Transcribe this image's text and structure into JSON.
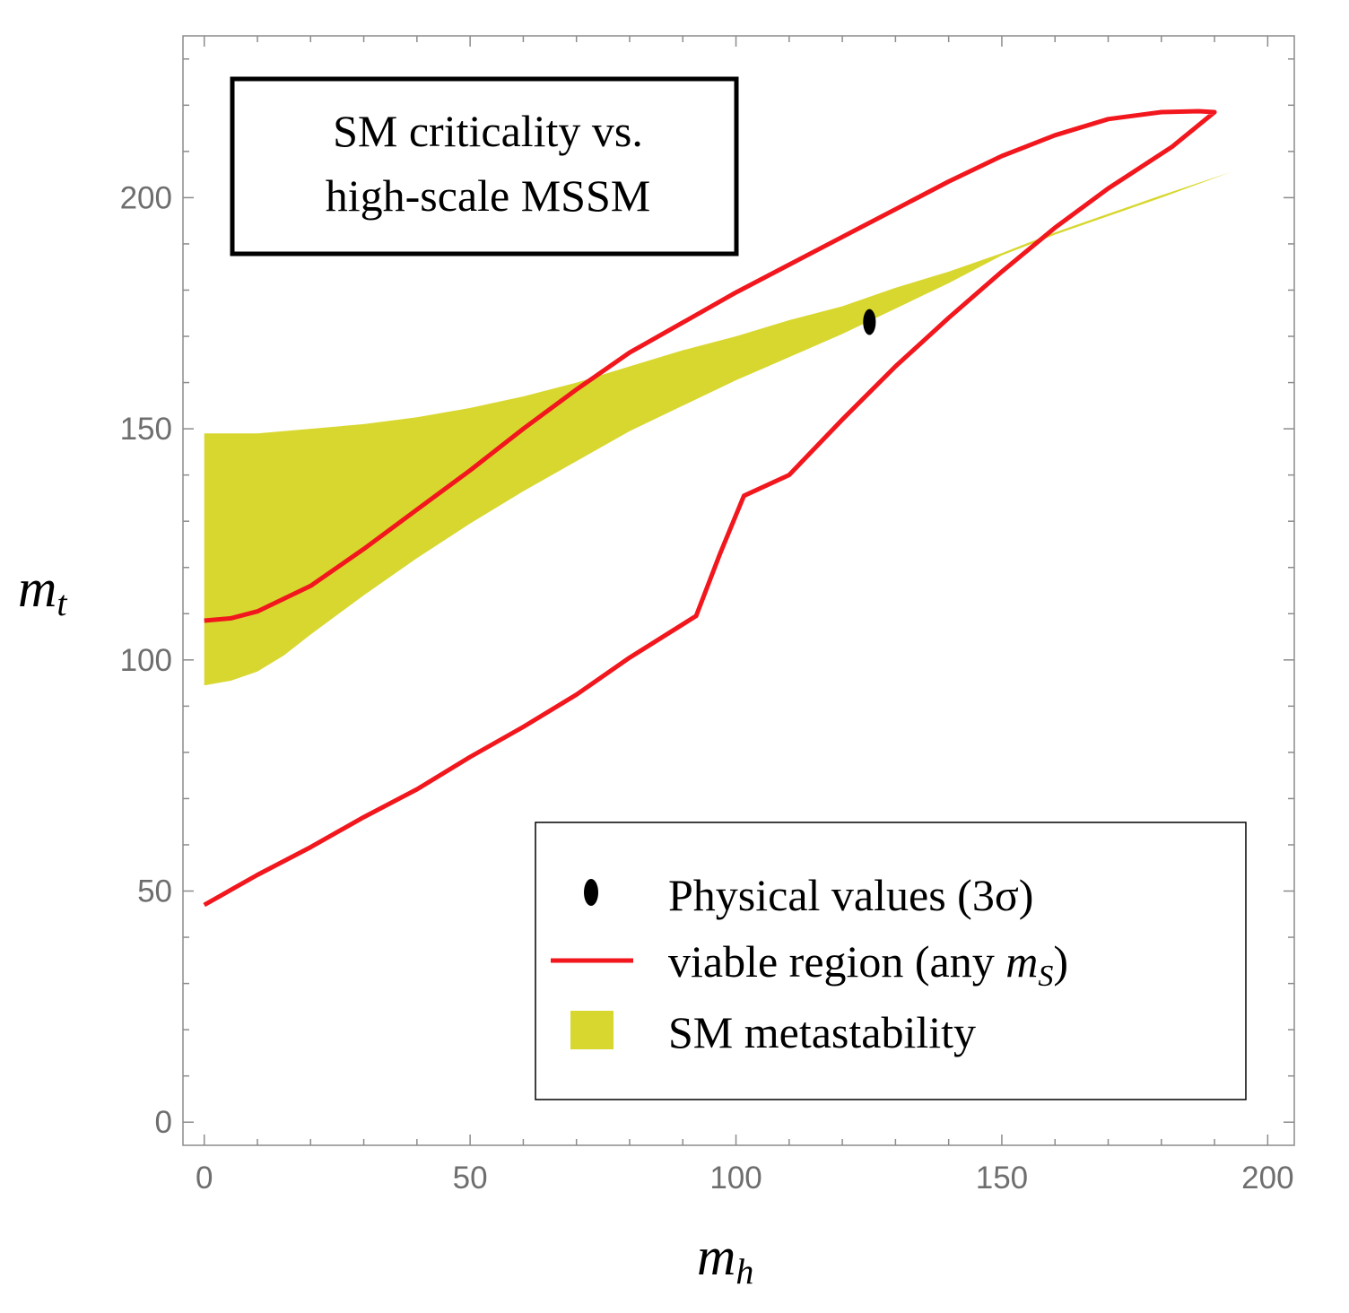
{
  "chart_data": {
    "type": "line",
    "title_lines": [
      "SM criticality vs.",
      "high-scale MSSM"
    ],
    "xlabel": {
      "base": "m",
      "sub": "h"
    },
    "ylabel": {
      "base": "m",
      "sub": "t"
    },
    "xlim": [
      -4,
      205
    ],
    "ylim": [
      -5,
      235
    ],
    "xticks": [
      0,
      50,
      100,
      150,
      200
    ],
    "yticks": [
      0,
      50,
      100,
      150,
      200
    ],
    "minor_x_step": 10,
    "minor_y_step": 10,
    "colors": {
      "curve": "#f2161d",
      "band": "#d8d730",
      "point": "#000000",
      "frame": "#8c8c8c"
    },
    "series": [
      {
        "name": "viable region (any mS)",
        "kind": "closed-curve",
        "points": [
          [
            0,
            108.5
          ],
          [
            5,
            109
          ],
          [
            10,
            110.5
          ],
          [
            20,
            116
          ],
          [
            30,
            124
          ],
          [
            40,
            132.5
          ],
          [
            50,
            141
          ],
          [
            60,
            150
          ],
          [
            70,
            158.5
          ],
          [
            80,
            166.5
          ],
          [
            90,
            173
          ],
          [
            100,
            179.5
          ],
          [
            110,
            185.5
          ],
          [
            120,
            191.5
          ],
          [
            130,
            197.5
          ],
          [
            140,
            203.5
          ],
          [
            150,
            209
          ],
          [
            160,
            213.5
          ],
          [
            170,
            217
          ],
          [
            180,
            218.5
          ],
          [
            187,
            218.7
          ],
          [
            190,
            218.5
          ],
          [
            182,
            211
          ],
          [
            170,
            202
          ],
          [
            160,
            193.5
          ],
          [
            150,
            184
          ],
          [
            140,
            174
          ],
          [
            130,
            163.5
          ],
          [
            120,
            152
          ],
          [
            110,
            140
          ],
          [
            101.5,
            135.5
          ],
          [
            97,
            123
          ],
          [
            92.5,
            109.5
          ],
          [
            80,
            100.5
          ],
          [
            70,
            92.5
          ],
          [
            60,
            85.5
          ],
          [
            50,
            79
          ],
          [
            40,
            72
          ],
          [
            30,
            66
          ],
          [
            20,
            59.5
          ],
          [
            10,
            53.5
          ],
          [
            0,
            47
          ]
        ]
      },
      {
        "name": "SM metastability",
        "kind": "band",
        "upper": [
          [
            0,
            149
          ],
          [
            5,
            149
          ],
          [
            10,
            149
          ],
          [
            20,
            150
          ],
          [
            30,
            151
          ],
          [
            40,
            152.5
          ],
          [
            50,
            154.5
          ],
          [
            60,
            157
          ],
          [
            70,
            160
          ],
          [
            80,
            163.5
          ],
          [
            90,
            167
          ],
          [
            100,
            170
          ],
          [
            110,
            173.5
          ],
          [
            120,
            176.5
          ],
          [
            130,
            180.5
          ],
          [
            140,
            184
          ],
          [
            150,
            188
          ],
          [
            160,
            192.5
          ],
          [
            170,
            196.5
          ],
          [
            180,
            200.5
          ],
          [
            193,
            205.5
          ]
        ],
        "lower": [
          [
            0,
            94.5
          ],
          [
            5,
            95.5
          ],
          [
            10,
            97.5
          ],
          [
            15,
            101
          ],
          [
            20,
            105.5
          ],
          [
            30,
            114
          ],
          [
            40,
            122
          ],
          [
            50,
            129.5
          ],
          [
            60,
            136.5
          ],
          [
            70,
            143
          ],
          [
            80,
            149.5
          ],
          [
            90,
            155
          ],
          [
            100,
            160.5
          ],
          [
            110,
            165.5
          ],
          [
            120,
            170.5
          ],
          [
            130,
            176
          ],
          [
            140,
            181.5
          ],
          [
            150,
            187.5
          ],
          [
            160,
            192
          ],
          [
            170,
            196
          ],
          [
            180,
            200
          ],
          [
            193,
            205.5
          ]
        ]
      },
      {
        "name": "Physical values (3σ)",
        "kind": "point",
        "x": 125.1,
        "y": 173.1,
        "x_err": 0.7,
        "y_err": 2.8
      }
    ],
    "legend": {
      "position": "bottom-right",
      "entries": [
        {
          "label": "Physical values (3σ)",
          "symbol": "point"
        },
        {
          "label": "viable region (any ",
          "math_base": "m",
          "math_sub": "S",
          "label_end": ")",
          "symbol": "line"
        },
        {
          "label": "SM metastability",
          "symbol": "box"
        }
      ]
    }
  }
}
